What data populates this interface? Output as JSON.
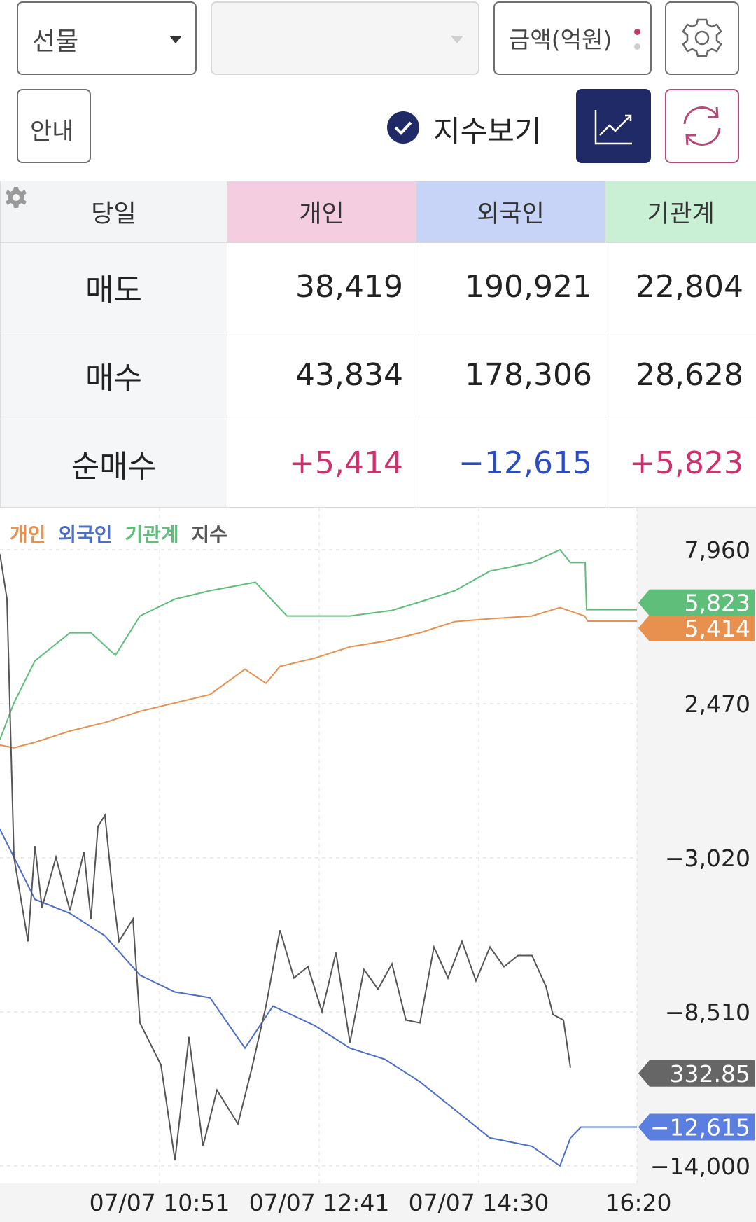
{
  "toolbar": {
    "market_select": "선물",
    "second_select": "",
    "unit_select": "금액(억원)",
    "guide_button": "안내",
    "index_toggle_label": "지수보기",
    "index_toggle_checked": true
  },
  "table": {
    "header": [
      "당일",
      "개인",
      "외국인",
      "기관계"
    ],
    "header_colors": [
      "#f2f4f6",
      "#f5cde0",
      "#c7d4f7",
      "#c9f0d5"
    ],
    "rows": [
      {
        "label": "매도",
        "values": [
          "38,419",
          "190,921",
          "22,804"
        ]
      },
      {
        "label": "매수",
        "values": [
          "43,834",
          "178,306",
          "28,628"
        ]
      },
      {
        "label": "순매수",
        "values": [
          "+5,414",
          "−12,615",
          "+5,823"
        ]
      }
    ]
  },
  "chart_data": {
    "type": "line",
    "legend": [
      "개인",
      "외국인",
      "기관계",
      "지수"
    ],
    "legend_colors": [
      "#e8904e",
      "#4b6fc9",
      "#5fbf7a",
      "#555555"
    ],
    "y_ticks": [
      "7,960",
      "2,470",
      "−3,020",
      "−8,510",
      "−14,000"
    ],
    "ylim": [
      -14000,
      7960
    ],
    "x_ticks": [
      "07/07 10:51",
      "07/07 12:41",
      "07/07 14:30",
      "16:20"
    ],
    "end_labels": {
      "기관계": "5,823",
      "개인": "5,414",
      "지수": "332.85",
      "외국인": "−12,615"
    },
    "series": [
      {
        "name": "개인",
        "color": "#e8904e",
        "points": [
          [
            0,
            1000
          ],
          [
            20,
            900
          ],
          [
            50,
            1100
          ],
          [
            100,
            1500
          ],
          [
            150,
            1800
          ],
          [
            200,
            2200
          ],
          [
            250,
            2500
          ],
          [
            300,
            2800
          ],
          [
            350,
            3700
          ],
          [
            380,
            3200
          ],
          [
            400,
            3800
          ],
          [
            450,
            4100
          ],
          [
            500,
            4500
          ],
          [
            550,
            4700
          ],
          [
            600,
            5000
          ],
          [
            650,
            5400
          ],
          [
            700,
            5500
          ],
          [
            760,
            5600
          ],
          [
            800,
            5900
          ],
          [
            835,
            5600
          ],
          [
            840,
            5414
          ],
          [
            910,
            5414
          ]
        ]
      },
      {
        "name": "외국인",
        "color": "#4b6fc9",
        "points": [
          [
            0,
            -2000
          ],
          [
            20,
            -3000
          ],
          [
            50,
            -4500
          ],
          [
            100,
            -5000
          ],
          [
            150,
            -5800
          ],
          [
            200,
            -7200
          ],
          [
            250,
            -7800
          ],
          [
            300,
            -8000
          ],
          [
            350,
            -9800
          ],
          [
            390,
            -8300
          ],
          [
            450,
            -9000
          ],
          [
            500,
            -9800
          ],
          [
            550,
            -10200
          ],
          [
            600,
            -11000
          ],
          [
            650,
            -12000
          ],
          [
            700,
            -13000
          ],
          [
            760,
            -13300
          ],
          [
            800,
            -14000
          ],
          [
            815,
            -13000
          ],
          [
            830,
            -12615
          ],
          [
            910,
            -12615
          ]
        ]
      },
      {
        "name": "기관계",
        "color": "#5fbf7a",
        "points": [
          [
            0,
            1200
          ],
          [
            20,
            2500
          ],
          [
            50,
            4000
          ],
          [
            100,
            5000
          ],
          [
            130,
            5000
          ],
          [
            165,
            4200
          ],
          [
            200,
            5600
          ],
          [
            250,
            6200
          ],
          [
            300,
            6500
          ],
          [
            365,
            6800
          ],
          [
            410,
            5600
          ],
          [
            500,
            5600
          ],
          [
            560,
            5800
          ],
          [
            600,
            6100
          ],
          [
            650,
            6500
          ],
          [
            700,
            7200
          ],
          [
            760,
            7500
          ],
          [
            800,
            7960
          ],
          [
            815,
            7500
          ],
          [
            836,
            7500
          ],
          [
            838,
            5823
          ],
          [
            910,
            5823
          ]
        ]
      },
      {
        "name": "지수",
        "color": "#555555",
        "points": [
          [
            0,
            7800
          ],
          [
            10,
            6200
          ],
          [
            20,
            -3000
          ],
          [
            30,
            -4500
          ],
          [
            40,
            -6000
          ],
          [
            50,
            -2600
          ],
          [
            60,
            -4800
          ],
          [
            80,
            -3000
          ],
          [
            100,
            -4900
          ],
          [
            120,
            -2800
          ],
          [
            130,
            -5200
          ],
          [
            140,
            -1900
          ],
          [
            150,
            -1500
          ],
          [
            160,
            -4000
          ],
          [
            170,
            -6000
          ],
          [
            190,
            -5200
          ],
          [
            200,
            -8900
          ],
          [
            230,
            -10400
          ],
          [
            250,
            -13800
          ],
          [
            270,
            -9400
          ],
          [
            290,
            -13300
          ],
          [
            310,
            -11300
          ],
          [
            340,
            -12500
          ],
          [
            360,
            -10500
          ],
          [
            380,
            -8300
          ],
          [
            400,
            -5600
          ],
          [
            420,
            -7300
          ],
          [
            440,
            -6900
          ],
          [
            460,
            -8500
          ],
          [
            480,
            -6400
          ],
          [
            500,
            -9600
          ],
          [
            520,
            -7000
          ],
          [
            540,
            -7700
          ],
          [
            560,
            -6800
          ],
          [
            580,
            -8800
          ],
          [
            600,
            -8900
          ],
          [
            620,
            -6200
          ],
          [
            640,
            -7300
          ],
          [
            660,
            -6000
          ],
          [
            680,
            -7400
          ],
          [
            700,
            -6200
          ],
          [
            720,
            -6900
          ],
          [
            740,
            -6500
          ],
          [
            760,
            -6500
          ],
          [
            780,
            -7600
          ],
          [
            790,
            -8600
          ],
          [
            805,
            -8800
          ],
          [
            815,
            -10500
          ]
        ]
      }
    ]
  }
}
